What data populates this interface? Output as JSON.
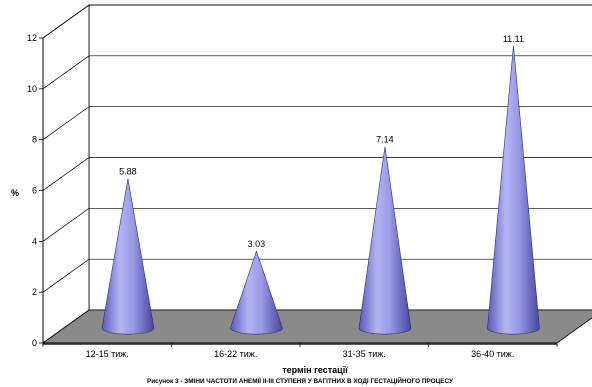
{
  "chart_data": {
    "type": "bar",
    "shape": "cone-3d",
    "categories": [
      "12-15 тиж.",
      "16-22 тиж.",
      "31-35 тиж.",
      "36-40 тиж."
    ],
    "values": [
      5.88,
      3.03,
      7.14,
      11.11
    ],
    "value_labels": [
      "5.88",
      "3.03",
      "7.14",
      "11.11"
    ],
    "ylabel": "%",
    "xlabel": "термін гестації",
    "caption": "Рисунок 3 - ЗМІНИ ЧАСТОТИ АНЕМІЇ ІІ-ІІІ СТУПЕНЯ У ВАГІТНИХ В ХОДІ ГЕСТАЦІЙНОГО ПРОЦЕСУ",
    "ylim": [
      0,
      12
    ],
    "yticks": [
      "0",
      "2",
      "4",
      "6",
      "8",
      "10",
      "12"
    ],
    "grid": true,
    "legend": "none",
    "colors": {
      "cone": "#9a9ae6",
      "cone_dark": "#4a4aa8",
      "floor": "#8a8a8a"
    }
  }
}
